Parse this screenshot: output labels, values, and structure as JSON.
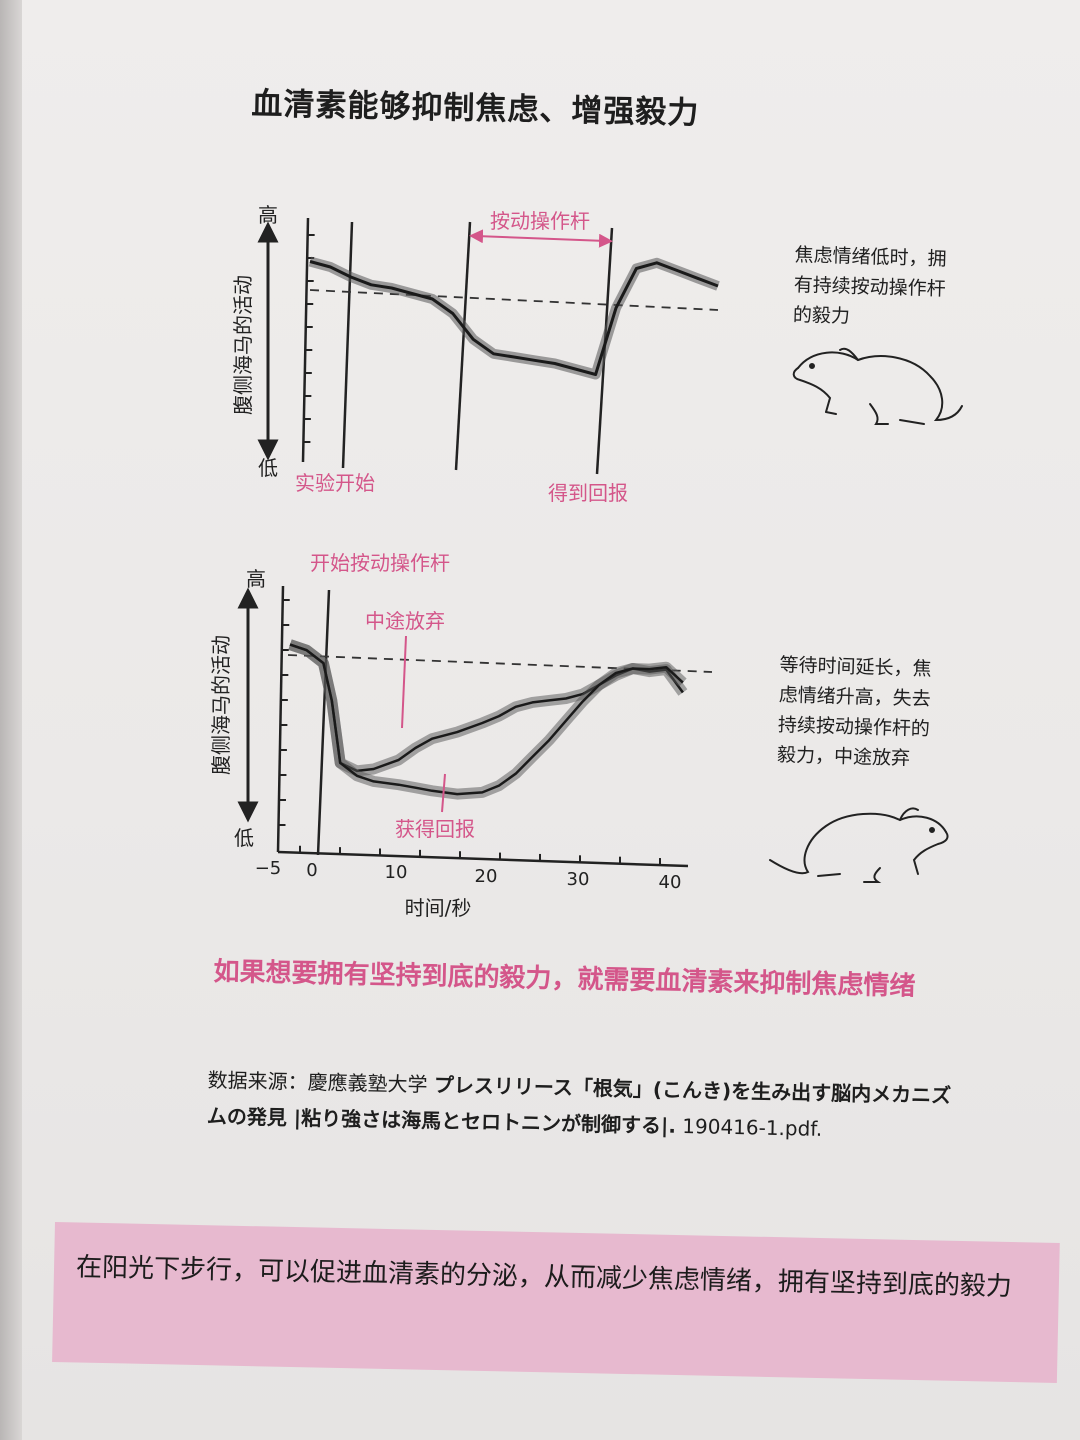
{
  "title": "血清素能够抑制焦虑、增强毅力",
  "top_chart": {
    "y_high": "高",
    "y_low": "低",
    "y_label": "腹侧海马的活动",
    "phase_label": "按动操作杆",
    "event_start": "实验开始",
    "event_reward": "得到回报",
    "note": [
      "焦虑情绪低时，拥",
      "有持续按动操作杆",
      "的毅力"
    ]
  },
  "bottom_chart": {
    "y_high": "高",
    "y_low": "低",
    "y_label": "腹侧海马的活动",
    "event_start": "开始按动操作杆",
    "event_quit": "中途放弃",
    "event_reward": "获得回报",
    "x_label": "时间/秒",
    "x_ticks": [
      "−5",
      "0",
      "10",
      "20",
      "30",
      "40"
    ],
    "note": [
      "等待时间延长，焦",
      "虑情绪升高，失去",
      "持续按动操作杆的",
      "毅力，中途放弃"
    ]
  },
  "chart_data": [
    {
      "type": "line",
      "ylabel": "腹侧海马的活动",
      "y_range_labels": [
        "低",
        "高"
      ],
      "series": [
        {
          "x": [
            0,
            0.05,
            0.1,
            0.15,
            0.2,
            0.25,
            0.3,
            0.35,
            0.4,
            0.45,
            0.5,
            0.55,
            0.6,
            0.65,
            0.7,
            0.75,
            0.8,
            0.85,
            0.9,
            0.95,
            1.0
          ],
          "y": [
            0.86,
            0.84,
            0.8,
            0.77,
            0.76,
            0.74,
            0.72,
            0.66,
            0.55,
            0.49,
            0.48,
            0.47,
            0.46,
            0.44,
            0.42,
            0.72,
            0.9,
            0.93,
            0.9,
            0.87,
            0.84
          ]
        }
      ]
    },
    {
      "type": "line",
      "xlabel": "时间/秒",
      "ylabel": "腹侧海马的活动",
      "xlim": [
        -5,
        45
      ],
      "y_range_labels": [
        "低",
        "高"
      ],
      "series": [
        {
          "x": [
            -5,
            -3,
            -1,
            0,
            1,
            3,
            5,
            8,
            10,
            12,
            15,
            18,
            20,
            22,
            24,
            26,
            28,
            30,
            32,
            34,
            36,
            38,
            40,
            42
          ],
          "y": [
            0.82,
            0.8,
            0.75,
            0.6,
            0.35,
            0.32,
            0.33,
            0.37,
            0.42,
            0.46,
            0.49,
            0.53,
            0.56,
            0.6,
            0.62,
            0.63,
            0.64,
            0.66,
            0.7,
            0.74,
            0.77,
            0.76,
            0.77,
            0.68
          ]
        },
        {
          "x": [
            -5,
            -3,
            -1,
            0,
            1,
            3,
            5,
            8,
            10,
            12,
            15,
            18,
            20,
            22,
            24,
            26,
            28,
            30,
            32,
            34,
            36,
            38,
            40,
            42
          ],
          "y": [
            0.82,
            0.8,
            0.75,
            0.6,
            0.35,
            0.3,
            0.28,
            0.27,
            0.26,
            0.25,
            0.24,
            0.25,
            0.28,
            0.33,
            0.4,
            0.47,
            0.55,
            0.63,
            0.7,
            0.75,
            0.77,
            0.77,
            0.78,
            0.72
          ]
        }
      ]
    }
  ],
  "caption": "如果想要拥有坚持到底的毅力，就需要血清素来抑制焦虑情绪",
  "source": {
    "prefix": "数据来源：慶應義塾大学",
    "jp": "プレスリリース「根気」(こんき)を生み出す脳内メカニズムの発見 |粘り強さは海馬とセロトニンが制御する|.",
    "file": "190416-1.pdf."
  },
  "highlight": "在阳光下步行，可以促进血清素的分泌，从而减少焦虑情绪，拥有坚持到底的毅力",
  "colors": {
    "accent": "#d4568a",
    "highlight_bg": "#e7b9cf",
    "ink": "#1e1e1e"
  }
}
